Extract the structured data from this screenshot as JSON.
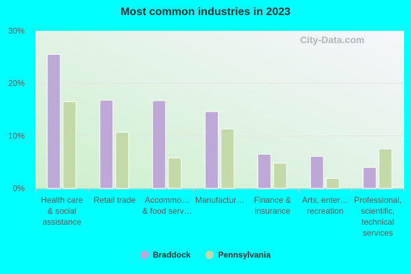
{
  "chart_data": {
    "type": "bar",
    "title": "Most common industries in 2023",
    "categories": [
      [
        "Health care",
        "& social",
        "assistance"
      ],
      [
        "Retail trade"
      ],
      [
        "Accommo…",
        "& food serv…"
      ],
      [
        "Manufactur…"
      ],
      [
        "Finance &",
        "insurance"
      ],
      [
        "Arts, enter…",
        "recreation"
      ],
      [
        "Professional,",
        "scientific,",
        "technical",
        "services"
      ]
    ],
    "series": [
      {
        "name": "Braddock",
        "color": "#bea8d8",
        "values": [
          25.5,
          16.8,
          16.7,
          14.6,
          6.5,
          6.1,
          4.0
        ]
      },
      {
        "name": "Pennsylvania",
        "color": "#c4d9a8",
        "values": [
          16.5,
          10.7,
          5.8,
          11.3,
          4.8,
          1.9,
          7.5
        ]
      }
    ],
    "ylim": [
      0,
      30
    ],
    "yticks": [
      "0%",
      "10%",
      "20%",
      "30%"
    ],
    "grid": true,
    "legend": "bottom"
  },
  "watermark": "City-Data.com"
}
